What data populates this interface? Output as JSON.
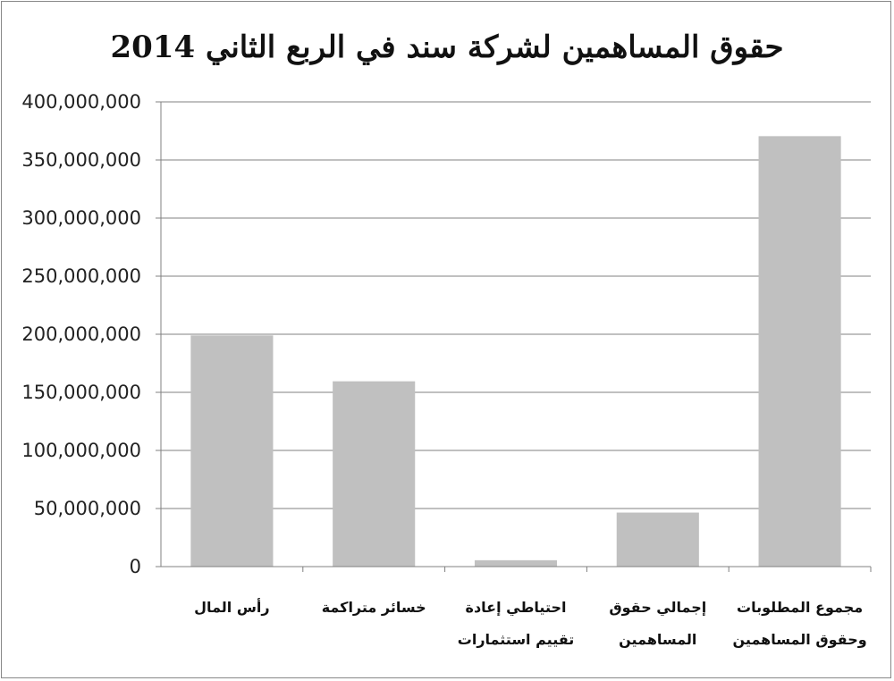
{
  "chart_data": {
    "type": "bar",
    "title": "حقوق المساهمين لشركة سند في الربع الثاني 2014",
    "xlabel": "",
    "ylabel": "",
    "categories": [
      [
        "رأس المال"
      ],
      [
        "خسائر متراكمة"
      ],
      [
        "احتياطي إعادة",
        "تقييم استثمارات"
      ],
      [
        "إجمالي حقوق",
        "المساهمين"
      ],
      [
        "مجموع المطلوبات",
        "وحقوق المساهمين"
      ]
    ],
    "values": [
      199000000,
      159500000,
      5500000,
      46500000,
      370500000
    ],
    "ylim": [
      0,
      400000000
    ],
    "yticks": [
      0,
      50000000,
      100000000,
      150000000,
      200000000,
      250000000,
      300000000,
      350000000,
      400000000
    ],
    "ytick_labels": [
      "0",
      "50,000,000",
      "100,000,000",
      "150,000,000",
      "200,000,000",
      "250,000,000",
      "300,000,000",
      "350,000,000",
      "400,000,000"
    ],
    "grid": true,
    "legend": "none",
    "bar_color": "#c0c0c0",
    "grid_color": "#808080"
  }
}
